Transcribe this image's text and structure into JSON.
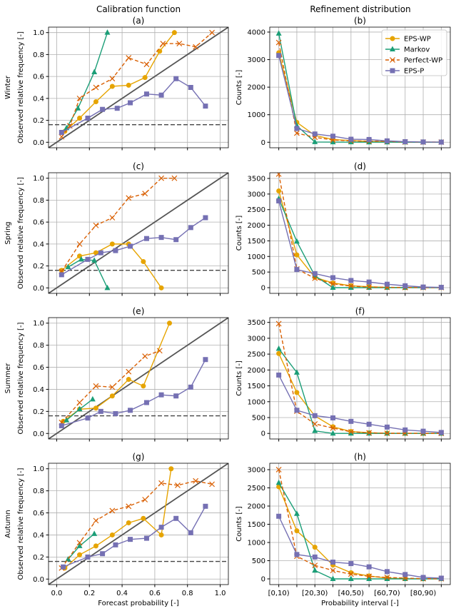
{
  "column_titles": [
    "Calibration function",
    "Refinement distribution"
  ],
  "legend": {
    "placement": "top-right",
    "entries": [
      "EPS-WP",
      "Markov",
      "Perfect-WP",
      "EPS-P"
    ]
  },
  "colors": {
    "EPS-WP": "#E6A400",
    "Markov": "#1B9E77",
    "Perfect-WP": "#D95F02",
    "EPS-P": "#7570B3"
  },
  "chart_data": [
    {
      "panel": "(a)",
      "row_label": "Winter",
      "type": "line",
      "ylabel": "Observed relative frequency [-]",
      "xlabel": "",
      "xlim": [
        -0.05,
        1.05
      ],
      "ylim": [
        -0.05,
        1.05
      ],
      "climatology": 0.16,
      "grid": true,
      "series": [
        {
          "name": "EPS-WP",
          "x": [
            0.05,
            0.14,
            0.24,
            0.34,
            0.44,
            0.54,
            0.63,
            0.72
          ],
          "y": [
            0.1,
            0.22,
            0.37,
            0.51,
            0.52,
            0.59,
            0.83,
            1.0
          ]
        },
        {
          "name": "Markov",
          "x": [
            0.06,
            0.13,
            0.23,
            0.31
          ],
          "y": [
            0.13,
            0.31,
            0.64,
            1.0
          ]
        },
        {
          "name": "Perfect-WP",
          "x": [
            0.03,
            0.08,
            0.14,
            0.24,
            0.34,
            0.44,
            0.55,
            0.65,
            0.75,
            0.85,
            0.95
          ],
          "y": [
            0.05,
            0.15,
            0.4,
            0.5,
            0.58,
            0.77,
            0.71,
            0.9,
            0.9,
            0.87,
            1.0
          ]
        },
        {
          "name": "EPS-P",
          "x": [
            0.03,
            0.19,
            0.28,
            0.37,
            0.45,
            0.55,
            0.64,
            0.73,
            0.82,
            0.91
          ],
          "y": [
            0.09,
            0.22,
            0.3,
            0.31,
            0.36,
            0.44,
            0.43,
            0.58,
            0.5,
            0.33
          ]
        }
      ]
    },
    {
      "panel": "(b)",
      "type": "line",
      "ylabel": "Counts [-]",
      "xlabel": "",
      "ylim": [
        -200,
        4180
      ],
      "yticks": [
        0,
        1000,
        2000,
        3000,
        4000
      ],
      "grid": true,
      "series": [
        {
          "name": "EPS-WP",
          "y": [
            3250,
            720,
            250,
            100,
            60,
            30,
            20,
            10,
            5,
            5
          ]
        },
        {
          "name": "Markov",
          "y": [
            3950,
            600,
            10,
            5,
            3,
            2,
            2,
            1,
            1,
            1
          ]
        },
        {
          "name": "Perfect-WP",
          "y": [
            3620,
            330,
            180,
            80,
            50,
            40,
            30,
            10,
            5,
            5
          ]
        },
        {
          "name": "EPS-P",
          "y": [
            3150,
            500,
            300,
            220,
            110,
            100,
            50,
            20,
            10,
            5
          ]
        }
      ]
    },
    {
      "panel": "(c)",
      "row_label": "Spring",
      "type": "line",
      "ylabel": "Observed relative frequency [-]",
      "xlabel": "",
      "xlim": [
        -0.05,
        1.05
      ],
      "ylim": [
        -0.05,
        1.05
      ],
      "climatology": 0.16,
      "grid": true,
      "series": [
        {
          "name": "EPS-WP",
          "x": [
            0.03,
            0.14,
            0.24,
            0.34,
            0.44,
            0.53,
            0.64
          ],
          "y": [
            0.16,
            0.29,
            0.32,
            0.4,
            0.4,
            0.24,
            0.0
          ]
        },
        {
          "name": "Markov",
          "x": [
            0.07,
            0.15,
            0.23,
            0.31
          ],
          "y": [
            0.19,
            0.26,
            0.25,
            0.0
          ]
        },
        {
          "name": "Perfect-WP",
          "x": [
            0.03,
            0.14,
            0.24,
            0.34,
            0.44,
            0.54,
            0.64,
            0.72
          ],
          "y": [
            0.15,
            0.4,
            0.57,
            0.64,
            0.82,
            0.86,
            1.0,
            1.0
          ]
        },
        {
          "name": "EPS-P",
          "x": [
            0.03,
            0.19,
            0.27,
            0.36,
            0.45,
            0.55,
            0.64,
            0.73,
            0.82,
            0.91
          ],
          "y": [
            0.12,
            0.26,
            0.32,
            0.34,
            0.38,
            0.45,
            0.46,
            0.44,
            0.55,
            0.64
          ]
        }
      ]
    },
    {
      "panel": "(d)",
      "type": "line",
      "ylabel": "Counts [-]",
      "xlabel": "",
      "ylim": [
        -183,
        3683
      ],
      "yticks": [
        0,
        500,
        1000,
        1500,
        2000,
        2500,
        3000,
        3500
      ],
      "grid": true,
      "series": [
        {
          "name": "EPS-WP",
          "y": [
            3100,
            1050,
            330,
            150,
            60,
            30,
            10,
            5,
            5,
            2
          ]
        },
        {
          "name": "Markov",
          "y": [
            2850,
            1480,
            380,
            0,
            0,
            0,
            0,
            0,
            0,
            0
          ]
        },
        {
          "name": "Perfect-WP",
          "y": [
            3640,
            600,
            300,
            120,
            50,
            20,
            10,
            5,
            3,
            3
          ]
        },
        {
          "name": "EPS-P",
          "y": [
            2780,
            580,
            450,
            320,
            230,
            180,
            110,
            60,
            20,
            10
          ]
        }
      ]
    },
    {
      "panel": "(e)",
      "row_label": "Summer",
      "type": "line",
      "ylabel": "Observed relative frequency [-]",
      "xlabel": "",
      "xlim": [
        -0.05,
        1.05
      ],
      "ylim": [
        -0.05,
        1.05
      ],
      "climatology": 0.16,
      "grid": true,
      "series": [
        {
          "name": "EPS-WP",
          "x": [
            0.04,
            0.14,
            0.24,
            0.34,
            0.44,
            0.53,
            0.69
          ],
          "y": [
            0.11,
            0.22,
            0.23,
            0.34,
            0.49,
            0.43,
            1.0
          ]
        },
        {
          "name": "Markov",
          "x": [
            0.06,
            0.14,
            0.22
          ],
          "y": [
            0.12,
            0.22,
            0.31
          ]
        },
        {
          "name": "Perfect-WP",
          "x": [
            0.03,
            0.14,
            0.24,
            0.34,
            0.44,
            0.54,
            0.63
          ],
          "y": [
            0.1,
            0.28,
            0.43,
            0.42,
            0.56,
            0.7,
            0.75
          ]
        },
        {
          "name": "EPS-P",
          "x": [
            0.03,
            0.19,
            0.27,
            0.36,
            0.45,
            0.55,
            0.64,
            0.73,
            0.82,
            0.91
          ],
          "y": [
            0.07,
            0.14,
            0.2,
            0.18,
            0.21,
            0.28,
            0.35,
            0.34,
            0.42,
            0.67
          ]
        }
      ]
    },
    {
      "panel": "(f)",
      "type": "line",
      "ylabel": "Counts [-]",
      "xlabel": "",
      "ylim": [
        -175,
        3650
      ],
      "yticks": [
        0,
        500,
        1000,
        1500,
        2000,
        2500,
        3000,
        3500
      ],
      "grid": true,
      "series": [
        {
          "name": "EPS-WP",
          "y": [
            2520,
            1290,
            550,
            210,
            60,
            20,
            5,
            3,
            2,
            2
          ]
        },
        {
          "name": "Markov",
          "y": [
            2670,
            1920,
            80,
            0,
            0,
            0,
            0,
            0,
            0,
            0
          ]
        },
        {
          "name": "Perfect-WP",
          "y": [
            3460,
            700,
            300,
            170,
            50,
            20,
            5,
            5,
            2,
            2
          ]
        },
        {
          "name": "EPS-P",
          "y": [
            1840,
            730,
            560,
            490,
            380,
            290,
            200,
            110,
            70,
            30
          ]
        }
      ]
    },
    {
      "panel": "(g)",
      "row_label": "Autumn",
      "type": "line",
      "ylabel": "Observed relative frequency [-]",
      "xlabel": "Forecast probability [-]",
      "xlim": [
        -0.05,
        1.05
      ],
      "ylim": [
        -0.05,
        1.05
      ],
      "climatology": 0.16,
      "grid": true,
      "series": [
        {
          "name": "EPS-WP",
          "x": [
            0.05,
            0.14,
            0.24,
            0.34,
            0.44,
            0.53,
            0.64,
            0.7
          ],
          "y": [
            0.1,
            0.22,
            0.3,
            0.4,
            0.51,
            0.55,
            0.4,
            1.0
          ]
        },
        {
          "name": "Markov",
          "x": [
            0.07,
            0.14,
            0.23
          ],
          "y": [
            0.18,
            0.3,
            0.41
          ]
        },
        {
          "name": "Perfect-WP",
          "x": [
            0.03,
            0.14,
            0.24,
            0.34,
            0.44,
            0.54,
            0.64,
            0.74,
            0.85,
            0.95
          ],
          "y": [
            0.1,
            0.33,
            0.53,
            0.62,
            0.66,
            0.72,
            0.87,
            0.85,
            0.89,
            0.86
          ]
        },
        {
          "name": "EPS-P",
          "x": [
            0.04,
            0.19,
            0.28,
            0.36,
            0.45,
            0.55,
            0.64,
            0.73,
            0.82,
            0.91
          ],
          "y": [
            0.11,
            0.2,
            0.23,
            0.31,
            0.36,
            0.37,
            0.47,
            0.55,
            0.42,
            0.66
          ]
        }
      ]
    },
    {
      "panel": "(h)",
      "type": "line",
      "ylabel": "Counts [-]",
      "xlabel": "Probability interval [-]",
      "ylim": [
        -157,
        3176
      ],
      "yticks": [
        0,
        500,
        1000,
        1500,
        2000,
        2500,
        3000
      ],
      "grid": true,
      "series": [
        {
          "name": "EPS-WP",
          "y": [
            2530,
            1320,
            870,
            380,
            170,
            80,
            20,
            5,
            2,
            2
          ]
        },
        {
          "name": "Markov",
          "y": [
            2640,
            1790,
            230,
            0,
            0,
            0,
            0,
            0,
            0,
            0
          ]
        },
        {
          "name": "Perfect-WP",
          "y": [
            3000,
            620,
            370,
            230,
            130,
            70,
            40,
            20,
            5,
            3
          ]
        },
        {
          "name": "EPS-P",
          "y": [
            1720,
            670,
            600,
            460,
            420,
            330,
            200,
            120,
            40,
            20
          ]
        }
      ]
    }
  ],
  "left_xticks": [
    "0.0",
    "0.2",
    "0.4",
    "0.6",
    "0.8",
    "1.0"
  ],
  "left_yticks": [
    "0.0",
    "0.2",
    "0.4",
    "0.6",
    "0.8",
    "1.0"
  ],
  "right_xticks": [
    "[0,10)",
    "[20,30)",
    "[40,50)",
    "[60,70)",
    "[80,90)"
  ]
}
